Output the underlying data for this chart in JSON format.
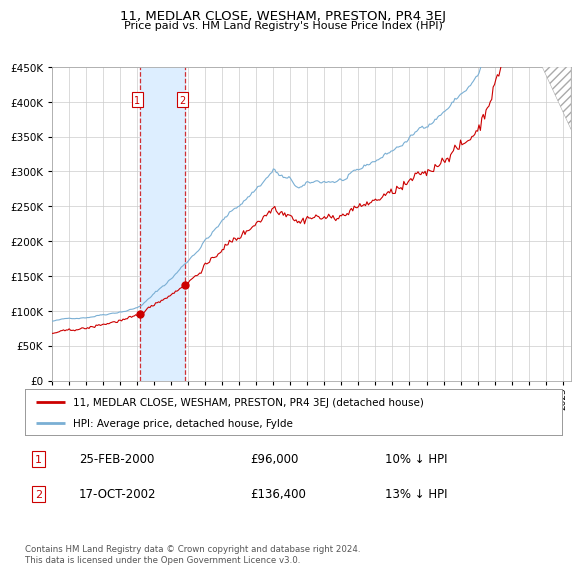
{
  "title": "11, MEDLAR CLOSE, WESHAM, PRESTON, PR4 3EJ",
  "subtitle": "Price paid vs. HM Land Registry's House Price Index (HPI)",
  "hpi_label": "HPI: Average price, detached house, Fylde",
  "property_label": "11, MEDLAR CLOSE, WESHAM, PRESTON, PR4 3EJ (detached house)",
  "transactions": [
    {
      "num": 1,
      "date": "25-FEB-2000",
      "price": 96000,
      "hpi_pct": "10% ↓ HPI",
      "x_year": 2000.14
    },
    {
      "num": 2,
      "date": "17-OCT-2002",
      "price": 136400,
      "hpi_pct": "13% ↓ HPI",
      "x_year": 2002.79
    }
  ],
  "hpi_color": "#7aafd4",
  "property_color": "#cc0000",
  "transaction_color": "#cc0000",
  "vline_color": "#cc0000",
  "shade_color": "#ddeeff",
  "ylim": [
    0,
    450000
  ],
  "xlim_start": 1995.0,
  "xlim_end": 2025.5,
  "ytick_interval": 50000,
  "footnote": "Contains HM Land Registry data © Crown copyright and database right 2024.\nThis data is licensed under the Open Government Licence v3.0.",
  "grid_color": "#cccccc",
  "background_color": "#ffffff",
  "seed": 42
}
